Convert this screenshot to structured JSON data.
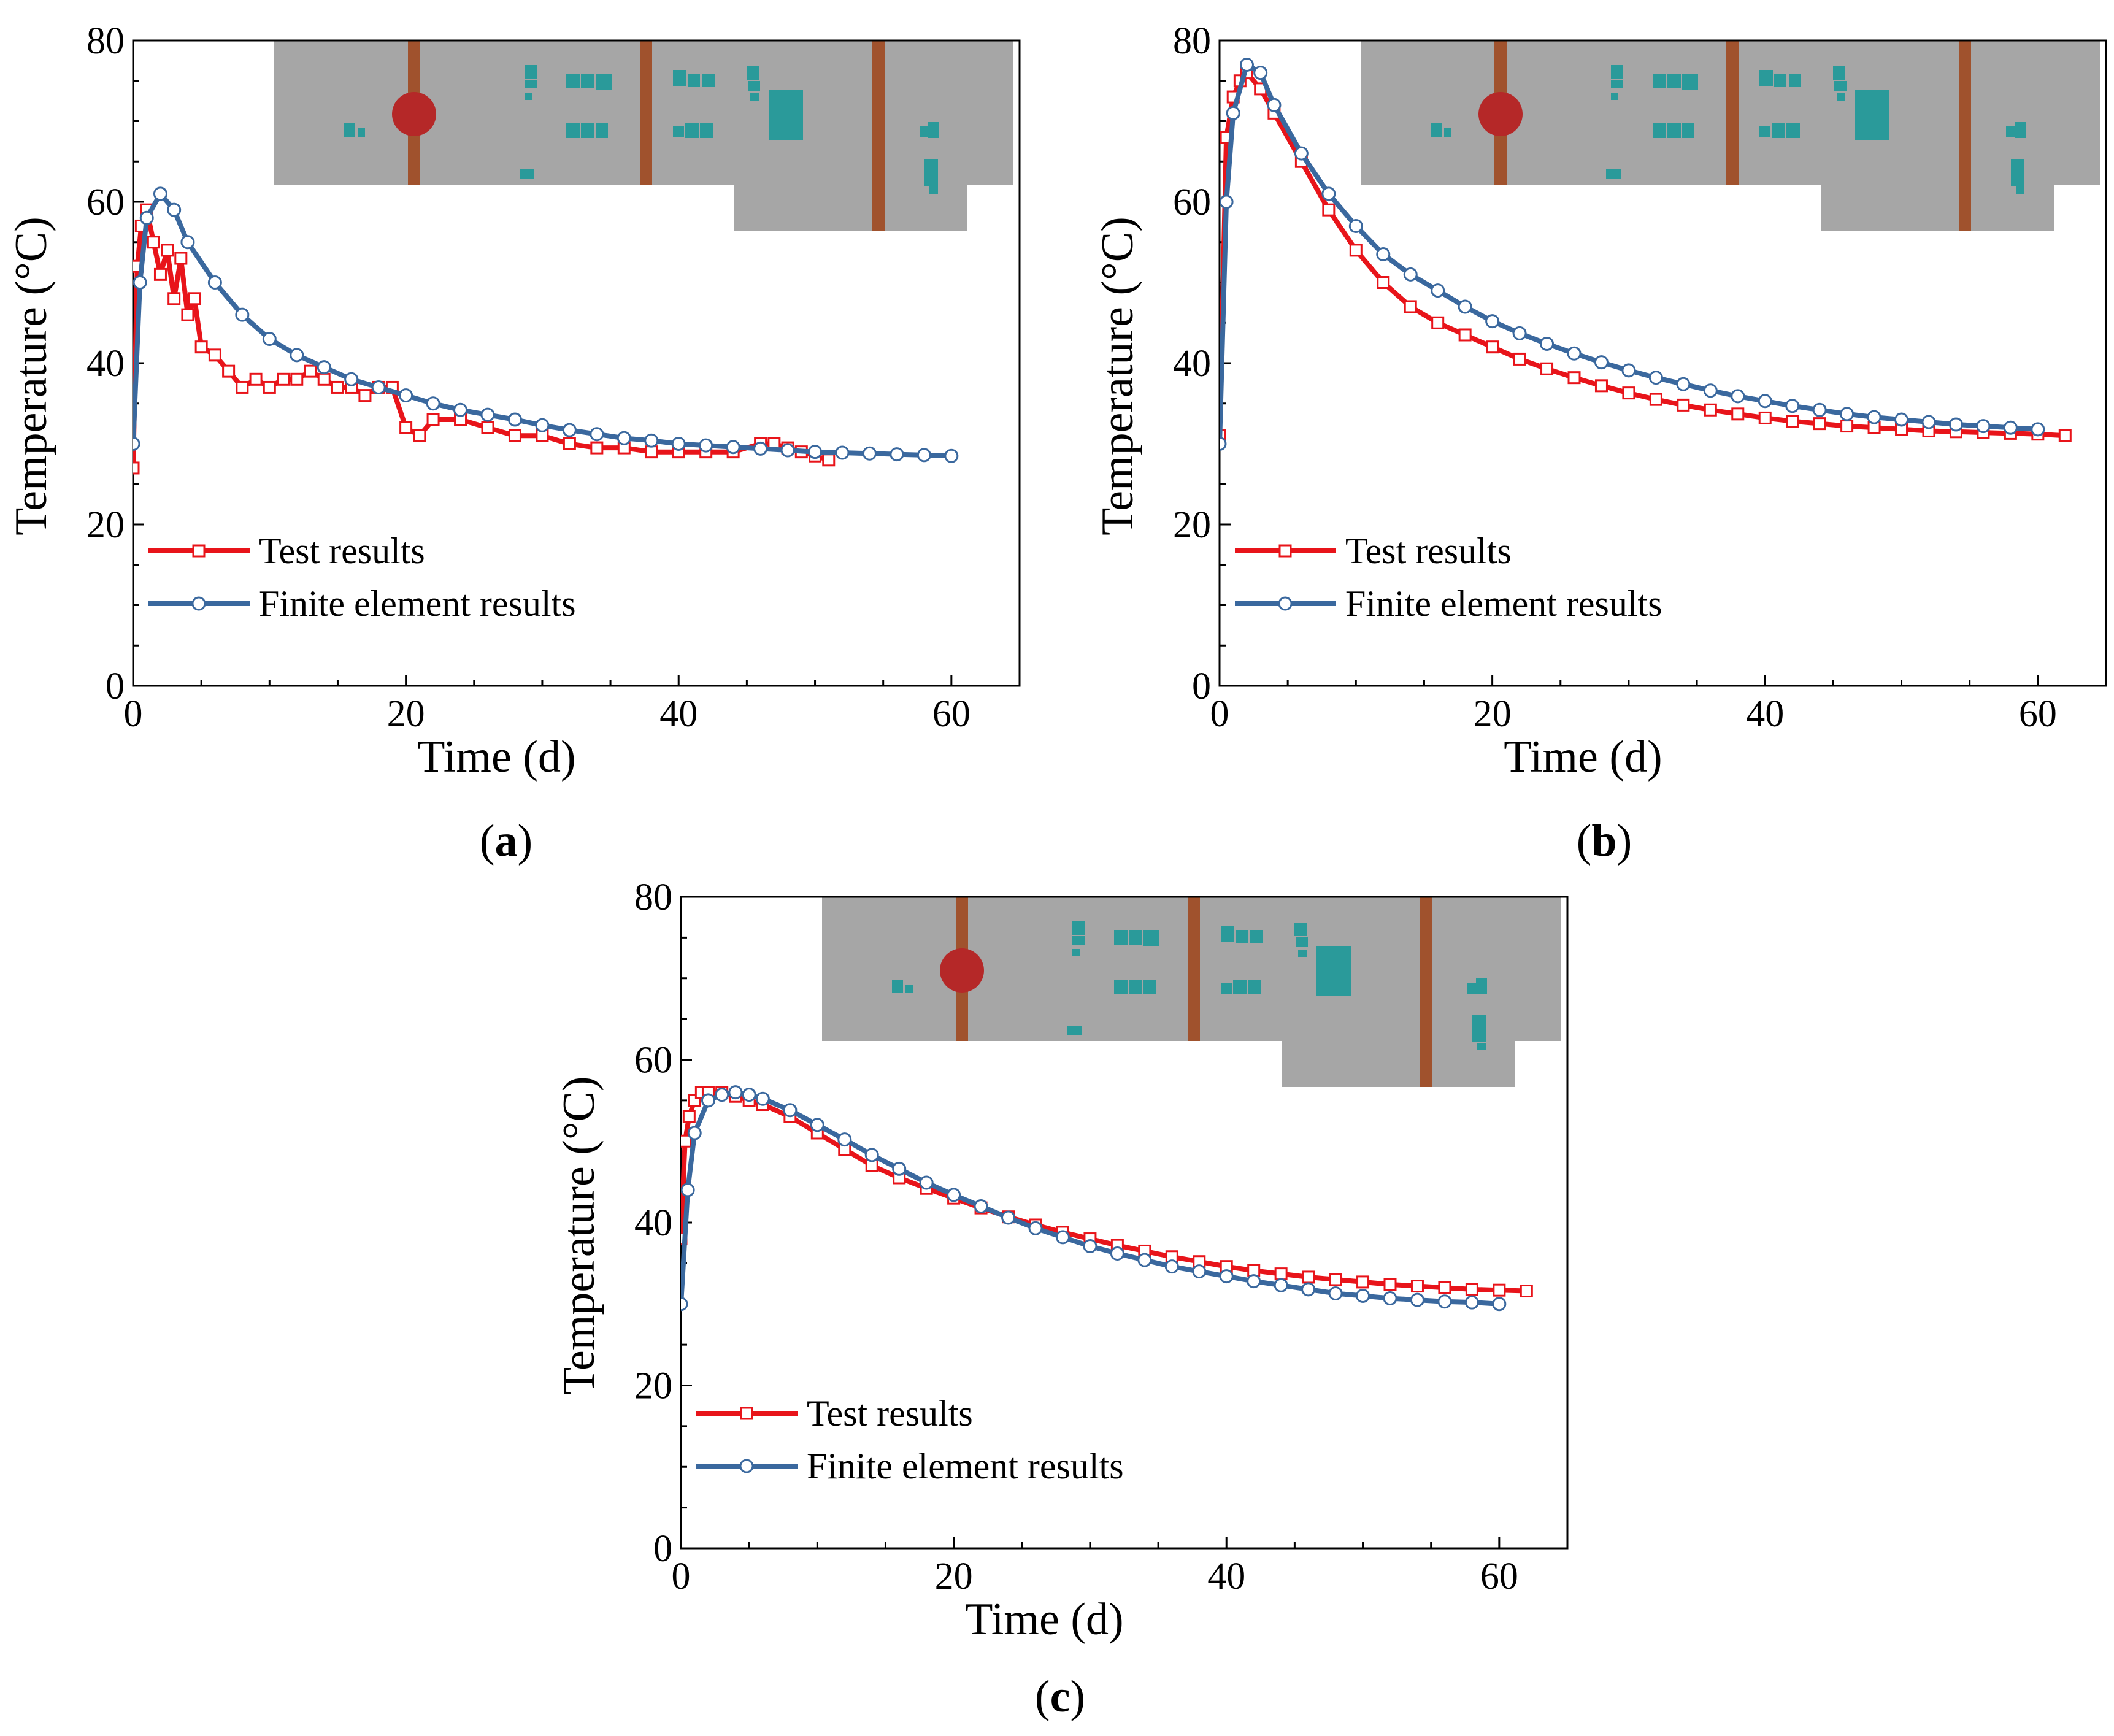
{
  "figure": {
    "panels": [
      {
        "label_open": "(",
        "label_letter": "a",
        "label_close": ")"
      },
      {
        "label_open": "(",
        "label_letter": "b",
        "label_close": ")"
      },
      {
        "label_open": "(",
        "label_letter": "c",
        "label_close": ")"
      }
    ]
  },
  "colors": {
    "test": "#e8141a",
    "fe": "#3a689e",
    "inset_body": "#a6a6a6",
    "inset_pipe": "#a0522d",
    "inset_sensor": "#2a9a9a",
    "inset_point": "#b52828"
  },
  "chart_data": [
    {
      "type": "line",
      "panel": "a",
      "xlabel": "Time (d)",
      "ylabel": "Temperature (°C)",
      "xlim": [
        0,
        65
      ],
      "ylim": [
        0,
        80
      ],
      "xticks": [
        0,
        20,
        40,
        60
      ],
      "yticks": [
        0,
        20,
        40,
        60,
        80
      ],
      "legend": "bottom-left",
      "series": [
        {
          "name": "Test results",
          "marker": "square",
          "x": [
            0,
            0.3,
            0.6,
            1,
            1.5,
            2,
            2.5,
            3,
            3.5,
            4,
            4.5,
            5,
            6,
            7,
            8,
            9,
            10,
            11,
            12,
            13,
            14,
            15,
            16,
            17,
            18,
            19,
            20,
            21,
            22,
            24,
            26,
            28,
            30,
            32,
            34,
            36,
            38,
            40,
            42,
            44,
            46,
            47,
            48,
            49,
            50,
            51
          ],
          "y": [
            27,
            52,
            57,
            59,
            55,
            51,
            54,
            48,
            53,
            46,
            48,
            42,
            41,
            39,
            37,
            38,
            37,
            38,
            38,
            39,
            38,
            37,
            37,
            36,
            37,
            37,
            32,
            31,
            33,
            33,
            32,
            31,
            31,
            30,
            29.5,
            29.5,
            29,
            29,
            29,
            29,
            30,
            30,
            29.5,
            29,
            28.5,
            28
          ]
        },
        {
          "name": "Finite element results",
          "marker": "circle",
          "x": [
            0,
            0.5,
            1,
            2,
            3,
            4,
            6,
            8,
            10,
            12,
            14,
            16,
            18,
            20,
            22,
            24,
            26,
            28,
            30,
            32,
            34,
            36,
            38,
            40,
            42,
            44,
            46,
            48,
            50,
            52,
            54,
            56,
            58,
            60
          ],
          "y": [
            30,
            50,
            58,
            61,
            59,
            55,
            50,
            46,
            43,
            41,
            39.5,
            38,
            37,
            36,
            35,
            34.2,
            33.6,
            33,
            32.3,
            31.7,
            31.2,
            30.7,
            30.4,
            30,
            29.8,
            29.6,
            29.4,
            29.2,
            29,
            28.9,
            28.8,
            28.7,
            28.6,
            28.5
          ]
        }
      ]
    },
    {
      "type": "line",
      "panel": "b",
      "xlabel": "Time (d)",
      "ylabel": "Temperature (°C)",
      "xlim": [
        0,
        65
      ],
      "ylim": [
        0,
        80
      ],
      "xticks": [
        0,
        20,
        40,
        60
      ],
      "yticks": [
        0,
        20,
        40,
        60,
        80
      ],
      "legend": "bottom-left",
      "series": [
        {
          "name": "Test results",
          "marker": "square",
          "x": [
            0,
            0.5,
            1,
            1.5,
            2,
            3,
            4,
            6,
            8,
            10,
            12,
            14,
            16,
            18,
            20,
            22,
            24,
            26,
            28,
            30,
            32,
            34,
            36,
            38,
            40,
            42,
            44,
            46,
            48,
            50,
            52,
            54,
            56,
            58,
            60,
            62
          ],
          "y": [
            31,
            68,
            73,
            75,
            76,
            74,
            71,
            65,
            59,
            54,
            50,
            47,
            45,
            43.5,
            42,
            40.5,
            39.3,
            38.2,
            37.2,
            36.3,
            35.5,
            34.8,
            34.2,
            33.7,
            33.2,
            32.8,
            32.5,
            32.2,
            32,
            31.8,
            31.6,
            31.5,
            31.4,
            31.3,
            31.2,
            31
          ]
        },
        {
          "name": "Finite element results",
          "marker": "circle",
          "x": [
            0,
            0.5,
            1,
            2,
            3,
            4,
            6,
            8,
            10,
            12,
            14,
            16,
            18,
            20,
            22,
            24,
            26,
            28,
            30,
            32,
            34,
            36,
            38,
            40,
            42,
            44,
            46,
            48,
            50,
            52,
            54,
            56,
            58,
            60
          ],
          "y": [
            30,
            60,
            71,
            77,
            76,
            72,
            66,
            61,
            57,
            53.5,
            51,
            49,
            47,
            45.2,
            43.7,
            42.4,
            41.2,
            40.1,
            39.1,
            38.2,
            37.4,
            36.6,
            35.9,
            35.3,
            34.7,
            34.2,
            33.7,
            33.3,
            33,
            32.7,
            32.4,
            32.2,
            32,
            31.8
          ]
        }
      ]
    },
    {
      "type": "line",
      "panel": "c",
      "xlabel": "Time (d)",
      "ylabel": "Temperature (°C)",
      "xlim": [
        0,
        65
      ],
      "ylim": [
        0,
        80
      ],
      "xticks": [
        0,
        20,
        40,
        60
      ],
      "yticks": [
        0,
        20,
        40,
        60,
        80
      ],
      "legend": "bottom-left",
      "series": [
        {
          "name": "Test results",
          "marker": "square",
          "x": [
            0,
            0.3,
            0.6,
            1,
            1.5,
            2,
            3,
            4,
            5,
            6,
            8,
            10,
            12,
            14,
            16,
            18,
            20,
            22,
            24,
            26,
            28,
            30,
            32,
            34,
            36,
            38,
            40,
            42,
            44,
            46,
            48,
            50,
            52,
            54,
            56,
            58,
            60,
            62
          ],
          "y": [
            38,
            50,
            53,
            55,
            56,
            56,
            56,
            55.5,
            55,
            54.5,
            53,
            51,
            49,
            47,
            45.5,
            44.2,
            43,
            41.8,
            40.7,
            39.7,
            38.8,
            38,
            37.2,
            36.5,
            35.8,
            35.2,
            34.6,
            34.1,
            33.7,
            33.3,
            33,
            32.7,
            32.4,
            32.2,
            32,
            31.8,
            31.7,
            31.6
          ]
        },
        {
          "name": "Finite element results",
          "marker": "circle",
          "x": [
            0,
            0.5,
            1,
            2,
            3,
            4,
            5,
            6,
            8,
            10,
            12,
            14,
            16,
            18,
            20,
            22,
            24,
            26,
            28,
            30,
            32,
            34,
            36,
            38,
            40,
            42,
            44,
            46,
            48,
            50,
            52,
            54,
            56,
            58,
            60
          ],
          "y": [
            30,
            44,
            51,
            55,
            55.7,
            56,
            55.7,
            55.2,
            53.8,
            52,
            50.2,
            48.3,
            46.6,
            44.9,
            43.4,
            42,
            40.6,
            39.3,
            38.2,
            37.1,
            36.2,
            35.4,
            34.6,
            34,
            33.4,
            32.8,
            32.3,
            31.8,
            31.3,
            31,
            30.7,
            30.5,
            30.3,
            30.2,
            30
          ]
        }
      ]
    }
  ]
}
